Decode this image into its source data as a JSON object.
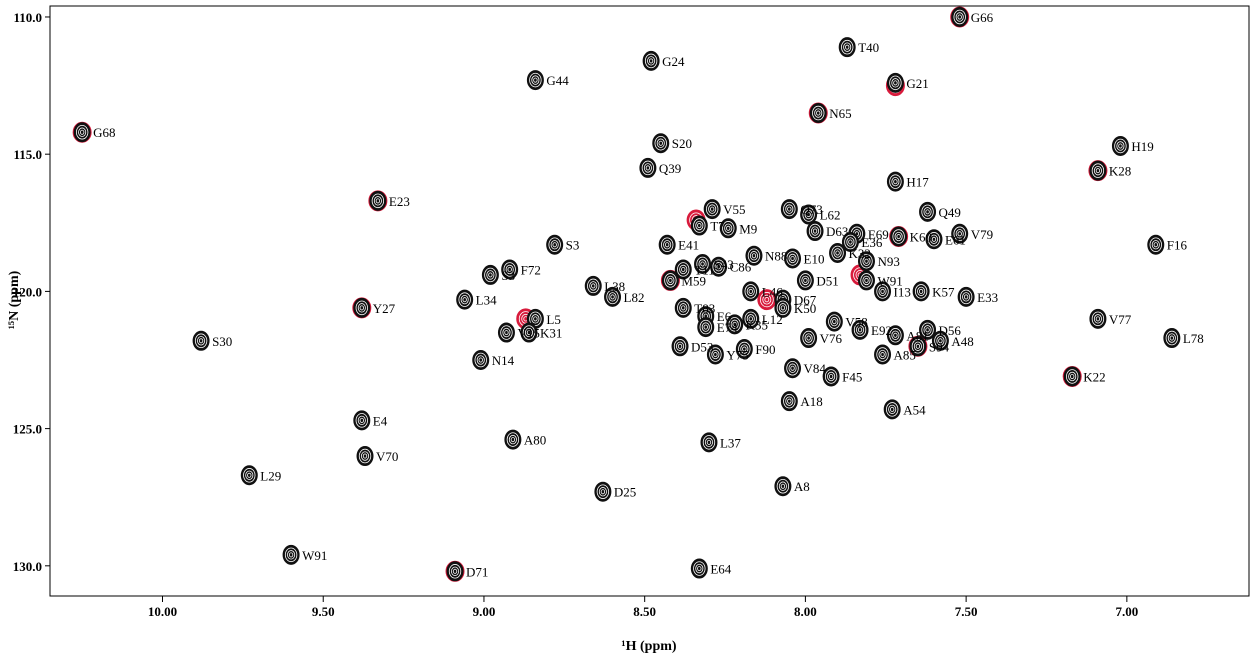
{
  "chart_data": {
    "type": "scatter",
    "title": "",
    "xlabel": "¹H (ppm)",
    "ylabel": "¹⁵N (ppm)",
    "xlim": [
      10.35,
      6.62
    ],
    "ylim": [
      109.6,
      131.1
    ],
    "x_axis_reversed": true,
    "y_axis_reversed": true,
    "grid": false,
    "x_ticks": [
      "10.00",
      "9.50",
      "9.00",
      "8.50",
      "8.00",
      "7.50",
      "7.00"
    ],
    "y_ticks": [
      "110.0",
      "115.0",
      "120.0",
      "125.0",
      "130.0"
    ],
    "series": [
      {
        "color": "#111111",
        "peaks": [
          {
            "label": "G66",
            "h": 7.52,
            "n": 110.0
          },
          {
            "label": "T40",
            "h": 7.87,
            "n": 111.1
          },
          {
            "label": "G21",
            "h": 7.72,
            "n": 112.4
          },
          {
            "label": "G24",
            "h": 8.48,
            "n": 111.6
          },
          {
            "label": "G44",
            "h": 8.84,
            "n": 112.3
          },
          {
            "label": "N65",
            "h": 7.96,
            "n": 113.5
          },
          {
            "label": "G68",
            "h": 10.25,
            "n": 114.2
          },
          {
            "label": "S20",
            "h": 8.45,
            "n": 114.6
          },
          {
            "label": "H19",
            "h": 7.02,
            "n": 114.7
          },
          {
            "label": "Q39",
            "h": 8.49,
            "n": 115.5
          },
          {
            "label": "K28",
            "h": 7.09,
            "n": 115.6
          },
          {
            "label": "H17",
            "h": 7.72,
            "n": 116.0
          },
          {
            "label": "E23",
            "h": 9.33,
            "n": 116.7
          },
          {
            "label": "V55",
            "h": 8.29,
            "n": 117.0
          },
          {
            "label": "Q73",
            "h": 8.05,
            "n": 117.0
          },
          {
            "label": "L62",
            "h": 7.99,
            "n": 117.2
          },
          {
            "label": "Q49",
            "h": 7.62,
            "n": 117.1
          },
          {
            "label": "T7",
            "h": 8.33,
            "n": 117.6
          },
          {
            "label": "M9",
            "h": 8.24,
            "n": 117.7
          },
          {
            "label": "D63",
            "h": 7.97,
            "n": 117.8
          },
          {
            "label": "E69",
            "h": 7.84,
            "n": 117.9
          },
          {
            "label": "K60",
            "h": 7.71,
            "n": 118.0
          },
          {
            "label": "V79",
            "h": 7.52,
            "n": 117.9
          },
          {
            "label": "E41",
            "h": 8.43,
            "n": 118.3
          },
          {
            "label": "E36",
            "h": 7.86,
            "n": 118.2
          },
          {
            "label": "E61",
            "h": 7.6,
            "n": 118.1
          },
          {
            "label": "S3",
            "h": 8.78,
            "n": 118.3
          },
          {
            "label": "K32",
            "h": 7.9,
            "n": 118.6
          },
          {
            "label": "N88",
            "h": 8.16,
            "n": 118.7
          },
          {
            "label": "F16",
            "h": 6.91,
            "n": 118.3
          },
          {
            "label": "E10",
            "h": 8.04,
            "n": 118.8
          },
          {
            "label": "N93",
            "h": 7.81,
            "n": 118.9
          },
          {
            "label": "S43",
            "h": 8.32,
            "n": 119.0
          },
          {
            "label": "C86",
            "h": 8.27,
            "n": 119.1
          },
          {
            "label": "T11",
            "h": 8.38,
            "n": 119.2
          },
          {
            "label": "F72",
            "h": 8.92,
            "n": 119.2
          },
          {
            "label": "S3",
            "h": 8.98,
            "n": 119.4
          },
          {
            "label": "W91",
            "h": 7.81,
            "n": 119.6
          },
          {
            "label": "M59",
            "h": 8.42,
            "n": 119.6
          },
          {
            "label": "D51",
            "h": 8.0,
            "n": 119.6
          },
          {
            "label": "L38",
            "h": 8.66,
            "n": 119.8
          },
          {
            "label": "L46",
            "h": 8.17,
            "n": 120.0
          },
          {
            "label": "I13",
            "h": 7.76,
            "n": 120.0
          },
          {
            "label": "D67",
            "h": 8.07,
            "n": 120.3
          },
          {
            "label": "K57",
            "h": 7.64,
            "n": 120.0
          },
          {
            "label": "L82",
            "h": 8.6,
            "n": 120.2
          },
          {
            "label": "E33",
            "h": 7.5,
            "n": 120.2
          },
          {
            "label": "L34",
            "h": 9.06,
            "n": 120.3
          },
          {
            "label": "Y27",
            "h": 9.38,
            "n": 120.6
          },
          {
            "label": "T83",
            "h": 8.38,
            "n": 120.6
          },
          {
            "label": "K50",
            "h": 8.07,
            "n": 120.6
          },
          {
            "label": "L5",
            "h": 8.84,
            "n": 121.0
          },
          {
            "label": "E6",
            "h": 8.31,
            "n": 120.9
          },
          {
            "label": "L12",
            "h": 8.17,
            "n": 121.0
          },
          {
            "label": "V77",
            "h": 7.09,
            "n": 121.0
          },
          {
            "label": "K35",
            "h": 8.22,
            "n": 121.2
          },
          {
            "label": "V58",
            "h": 7.91,
            "n": 121.1
          },
          {
            "label": "D56",
            "h": 7.62,
            "n": 121.4
          },
          {
            "label": "E74",
            "h": 8.31,
            "n": 121.3
          },
          {
            "label": "A81",
            "h": 7.72,
            "n": 121.6
          },
          {
            "label": "V15",
            "h": 8.93,
            "n": 121.5
          },
          {
            "label": "K31",
            "h": 8.86,
            "n": 121.5
          },
          {
            "label": "E92",
            "h": 7.83,
            "n": 121.4
          },
          {
            "label": "V76",
            "h": 7.99,
            "n": 121.7
          },
          {
            "label": "L78",
            "h": 6.86,
            "n": 121.7
          },
          {
            "label": "S30",
            "h": 9.88,
            "n": 121.8
          },
          {
            "label": "D53",
            "h": 8.39,
            "n": 122.0
          },
          {
            "label": "F90",
            "h": 8.19,
            "n": 122.1
          },
          {
            "label": "A48",
            "h": 7.58,
            "n": 121.8
          },
          {
            "label": "S94",
            "h": 7.65,
            "n": 122.0
          },
          {
            "label": "Y75",
            "h": 8.28,
            "n": 122.3
          },
          {
            "label": "A85",
            "h": 7.76,
            "n": 122.3
          },
          {
            "label": "N14",
            "h": 9.01,
            "n": 122.5
          },
          {
            "label": "V84",
            "h": 8.04,
            "n": 122.8
          },
          {
            "label": "F45",
            "h": 7.92,
            "n": 123.1
          },
          {
            "label": "K22",
            "h": 7.17,
            "n": 123.1
          },
          {
            "label": "A18",
            "h": 8.05,
            "n": 124.0
          },
          {
            "label": "A54",
            "h": 7.73,
            "n": 124.3
          },
          {
            "label": "E4",
            "h": 9.38,
            "n": 124.7
          },
          {
            "label": "A80",
            "h": 8.91,
            "n": 125.4
          },
          {
            "label": "L37",
            "h": 8.3,
            "n": 125.5
          },
          {
            "label": "V70",
            "h": 9.37,
            "n": 126.0
          },
          {
            "label": "L29",
            "h": 9.73,
            "n": 126.7
          },
          {
            "label": "A8",
            "h": 8.07,
            "n": 127.1
          },
          {
            "label": "D25",
            "h": 8.63,
            "n": 127.3
          },
          {
            "label": "W91",
            "h": 9.6,
            "n": 129.6
          },
          {
            "label": "D71",
            "h": 9.09,
            "n": 130.2
          },
          {
            "label": "E64",
            "h": 8.33,
            "n": 130.1
          }
        ]
      },
      {
        "color": "#d81b3c",
        "peaks": [
          {
            "h": 7.52,
            "n": 110.0
          },
          {
            "h": 7.72,
            "n": 112.5
          },
          {
            "h": 7.96,
            "n": 113.5
          },
          {
            "h": 10.25,
            "n": 114.2
          },
          {
            "h": 7.09,
            "n": 115.6
          },
          {
            "h": 9.33,
            "n": 116.7
          },
          {
            "h": 7.71,
            "n": 118.0
          },
          {
            "h": 9.38,
            "n": 120.6
          },
          {
            "h": 8.42,
            "n": 119.6
          },
          {
            "h": 7.83,
            "n": 119.4
          },
          {
            "h": 7.65,
            "n": 122.0
          },
          {
            "h": 7.17,
            "n": 123.1
          },
          {
            "h": 9.09,
            "n": 130.2
          },
          {
            "h": 8.34,
            "n": 117.4
          },
          {
            "h": 8.12,
            "n": 120.3
          },
          {
            "h": 8.87,
            "n": 121.0
          }
        ]
      }
    ]
  }
}
